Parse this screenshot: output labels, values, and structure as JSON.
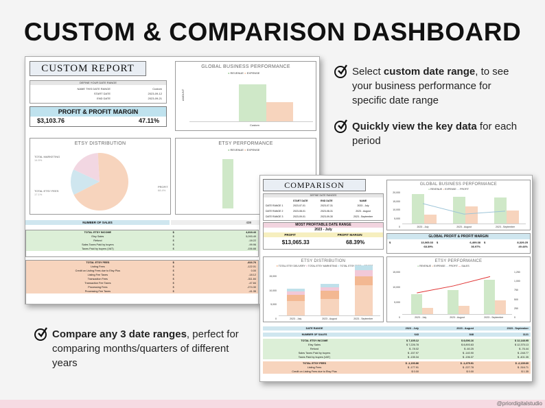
{
  "page": {
    "title": "CUSTOM & COMPARISON DASHBOARD",
    "credit": "@priordigitalstudio"
  },
  "notes": [
    {
      "bold": "custom date range",
      "pre": "Select ",
      "post": ", to see your business performance for specific date range"
    },
    {
      "bold": "Quickly view the key data",
      "pre": "",
      "post": " for each period"
    },
    {
      "bold": "Compare any 3 date ranges",
      "pre": "",
      "post": ", perfect for comparing months/quarters of different years"
    }
  ],
  "custom": {
    "header": "CUSTOM REPORT",
    "define": "DEFINE YOUR DATE RANGE",
    "name_label": "NAME THIS DATE RANGE",
    "name_value": "Custom",
    "start_label": "START DATE",
    "start_value": "2023-09-12",
    "end_label": "END DATE",
    "end_value": "2023-09-21",
    "profit_title": "PROFIT & PROFIT MARGIN",
    "profit": "$3,103.76",
    "margin": "47.11%",
    "gbp_title": "GLOBAL BUSINESS PERFORMANCE",
    "legend_revenue": "REVENUE",
    "legend_expense": "EXPENSE",
    "amount": "AMOUNT",
    "custom_tick": "Custom",
    "etsy_dist_title": "ETSY DISTRIBUTION",
    "pie_marketing": "TOTAL MARKETING",
    "pie_marketing_pct": "14.5%",
    "pie_fees": "TOTAL ETSY FEES",
    "pie_fees_pct": "17.1%",
    "pie_profit": "PROFIT",
    "pie_profit_pct": "68.4%",
    "etsy_perf_title": "ETSY PERFORMANCE",
    "sales_label": "NUMBER OF SALES",
    "sales_value": "438",
    "income_rows": [
      [
        "TOTAL ETSY INCOME",
        "$",
        "4,818.43"
      ],
      [
        "Etsy Sales",
        "$",
        "5,093.49"
      ],
      [
        "Refund",
        "$",
        "-18.22"
      ],
      [
        "Sales Taxes Paid by buyers",
        "$",
        "-99.96"
      ],
      [
        "Taxes Paid by buyers (VAT)",
        "$",
        "-156.88"
      ]
    ],
    "fee_rows": [
      [
        "TOTAL ETSY FEES",
        "$",
        "-816.76"
      ],
      [
        "Listing Fees",
        "$",
        "-122.01"
      ],
      [
        "Credit on Listing Fees due to Etsy Plus",
        "$",
        "0.00"
      ],
      [
        "Listing Fee Taxes",
        "$",
        "-18.12"
      ],
      [
        "Transaction Fees",
        "$",
        "-311.84"
      ],
      [
        "Transaction Fee Taxes",
        "$",
        "-47.84"
      ],
      [
        "Processing Fees",
        "$",
        "-274.30"
      ],
      [
        "Processing Fee Taxes",
        "$",
        "-41.35"
      ]
    ]
  },
  "comparison": {
    "header": "COMPARISON",
    "define": "DEFINE DATE RANGES",
    "cols": [
      "START DATE",
      "END DATE",
      "NAME"
    ],
    "ranges": [
      [
        "DATE RANGE 1",
        "2023-07-01",
        "2023-07-31",
        "2023 - July"
      ],
      [
        "DATE RANGE 2",
        "2023-08-01",
        "2023-08-31",
        "2023 - August"
      ],
      [
        "DATE RANGE 3",
        "2023-09-01",
        "2023-09-30",
        "2023 - September"
      ]
    ],
    "mp_title": "MOST PROFITABLE DATE RANGE",
    "mp_value": "2023 - July",
    "mp_profit_label": "PROFIT",
    "mp_margin_label": "PROFIT MARGIN",
    "mp_profit": "$13,065.33",
    "mp_margin": "68.39%",
    "gpm_title": "GLOBAL PROFIT & PROFIT MARGIN",
    "gpm": [
      [
        "13,065.33",
        "68.39%"
      ],
      [
        "6,409.38",
        "36.97%"
      ],
      [
        "8,329.25",
        "49.44%"
      ]
    ],
    "gbp_title": "GLOBAL BUSINESS PERFORMANCE",
    "legend_revenue": "REVENUE",
    "legend_expense": "EXPENSE",
    "legend_profit": "PROFIT",
    "legend_sales": "SALES",
    "amount": "AMOUNT",
    "dist_title": "ETSY DISTRIBUTION",
    "dist_legend": [
      "TOTAL ETSY DELIVERY",
      "TOTAL ETSY MARKETING",
      "TOTAL ETSY FEES",
      "PROFIT"
    ],
    "perf_title": "ETSY PERFORMANCE",
    "x_labels": [
      "2023 - July",
      "2023 - August",
      "2023 - September"
    ],
    "y_ticks": [
      "20,000",
      "15,000",
      "10,000",
      "5,000",
      "0"
    ],
    "y_ticks2": [
      "15,000",
      "10,000",
      "5,000",
      "0"
    ],
    "r_ticks": [
      "1,250",
      "1,000",
      "750",
      "500",
      "250",
      "0"
    ],
    "sales_axis": "SALES",
    "table_head": [
      "DATE RANGE",
      "2023 - July",
      "2023 - August",
      "2023 - September"
    ],
    "sales_row": [
      "NUMBER OF SALES",
      "643",
      "848",
      "1121"
    ],
    "income": [
      [
        "TOTAL ETSY INCOME",
        "7,105.12",
        "8,696.16",
        "12,148.95"
      ],
      [
        "Etsy Sales",
        "7,226.78",
        "8,893.63",
        "12,375.13"
      ],
      [
        "Refund",
        "-78.02",
        "-60.25",
        "-76.44"
      ],
      [
        "Sales Taxes Paid by buyers",
        "-157.97",
        "-140.90",
        "-248.77"
      ],
      [
        "Taxes Paid by buyers (VAT)",
        "-135.34",
        "-196.37",
        "-401.35"
      ]
    ],
    "fees": [
      [
        "TOTAL ETSY FEES",
        "-1,193.86",
        "-1,475.91",
        "-2,139.60"
      ],
      [
        "Listing Fees",
        "-177.91",
        "-227.78",
        "-316.71"
      ],
      [
        "Credit on Listing Fees due to Etsy Plus",
        "0.00",
        "0.00",
        "1.35"
      ]
    ]
  },
  "chart_data": [
    {
      "type": "bar",
      "title": "GLOBAL BUSINESS PERFORMANCE",
      "categories": [
        "Custom"
      ],
      "series": [
        {
          "name": "REVENUE",
          "values": [
            6600
          ]
        },
        {
          "name": "EXPENSE",
          "values": [
            3500
          ]
        }
      ]
    },
    {
      "type": "pie",
      "title": "ETSY DISTRIBUTION",
      "labels": [
        "TOTAL MARKETING",
        "TOTAL ETSY FEES",
        "PROFIT"
      ],
      "values": [
        14.5,
        17.1,
        68.4
      ]
    },
    {
      "type": "bar",
      "title": "GLOBAL BUSINESS PERFORMANCE",
      "categories": [
        "2023 - July",
        "2023 - August",
        "2023 - September"
      ],
      "series": [
        {
          "name": "REVENUE",
          "values": [
            19000,
            17500,
            16800
          ]
        },
        {
          "name": "EXPENSE",
          "values": [
            6000,
            10900,
            8500
          ]
        },
        {
          "name": "PROFIT",
          "values": [
            13100,
            6400,
            8300
          ]
        }
      ]
    },
    {
      "type": "bar",
      "title": "ETSY DISTRIBUTION",
      "categories": [
        "2023 - July",
        "2023 - August",
        "2023 - September"
      ],
      "series": [
        {
          "name": "TOTAL ETSY DELIVERY",
          "values": [
            2500,
            3500,
            4000
          ]
        },
        {
          "name": "TOTAL ETSY MARKETING",
          "values": [
            1500,
            1500,
            2500
          ]
        },
        {
          "name": "TOTAL ETSY FEES",
          "values": [
            1200,
            1500,
            2100
          ]
        },
        {
          "name": "PROFIT",
          "values": [
            6400,
            7200,
            13100
          ]
        }
      ]
    },
    {
      "type": "bar",
      "title": "ETSY PERFORMANCE",
      "categories": [
        "2023 - July",
        "2023 - August",
        "2023 - September"
      ],
      "series": [
        {
          "name": "REVENUE",
          "values": [
            7100,
            8700,
            12200
          ]
        },
        {
          "name": "EXPENSE",
          "values": [
            2300,
            3000,
            5000
          ]
        },
        {
          "name": "SALES",
          "values": [
            643,
            848,
            1121
          ]
        }
      ]
    }
  ]
}
